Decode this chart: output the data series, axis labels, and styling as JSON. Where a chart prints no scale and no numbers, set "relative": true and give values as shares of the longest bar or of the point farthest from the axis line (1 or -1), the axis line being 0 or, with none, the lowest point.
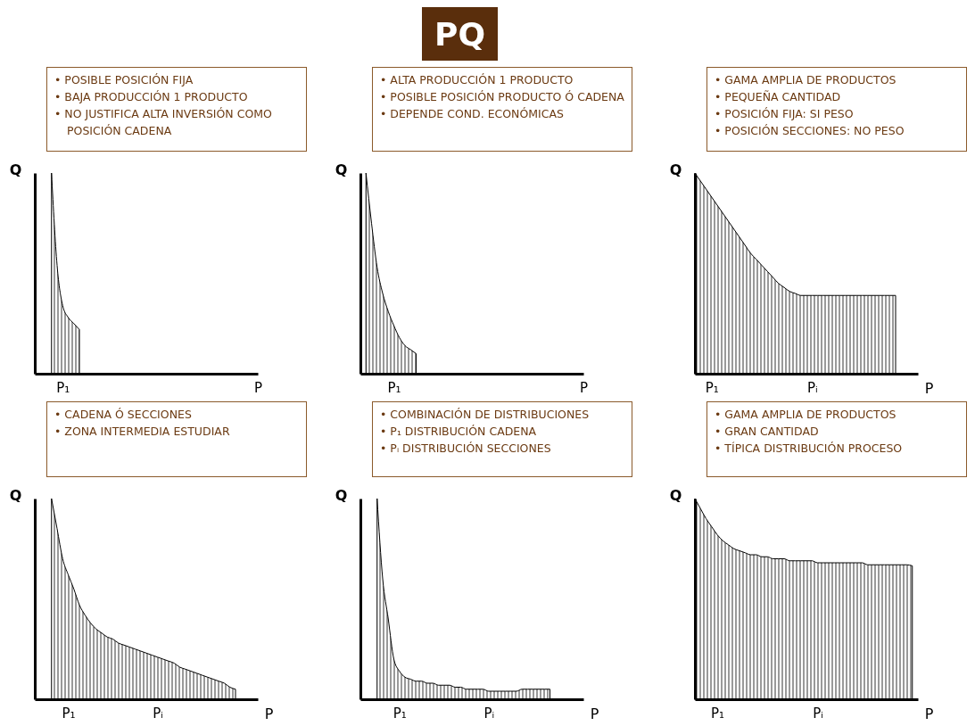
{
  "chart_data": [
    {
      "type": "other",
      "title": "PQ"
    },
    {
      "type": "area",
      "relative": true,
      "ylabel": "Q",
      "annotations": [
        "• POSIBLE POSICIÓN FIJA",
        "• BAJA PRODUCCIÓN 1 PRODUCTO",
        "• NO JUSTIFICA ALTA INVERSIÓN COMO POSICIÓN CADENA"
      ],
      "categories": [
        null,
        null,
        null,
        null,
        null,
        "P₁",
        null,
        null,
        null,
        null,
        null,
        null,
        null,
        null,
        null,
        null,
        null,
        null,
        null,
        null,
        null,
        null,
        null,
        null,
        null,
        null,
        null,
        null,
        null,
        null,
        null,
        null,
        null,
        null,
        null,
        null,
        null,
        null,
        null,
        null,
        "P"
      ],
      "series": [
        {
          "color": "#000000",
          "values": [
            null,
            null,
            null,
            1,
            0.54,
            0.34,
            0.28,
            0.25,
            0.22,
            null,
            null,
            null,
            null,
            null,
            null,
            null,
            null,
            null,
            null,
            null,
            null,
            null,
            null,
            null,
            null,
            null,
            null,
            null,
            null,
            null,
            null,
            null,
            null,
            null,
            null,
            null,
            null,
            null,
            null,
            null,
            null
          ]
        }
      ]
    },
    {
      "type": "area",
      "relative": true,
      "ylabel": "Q",
      "annotations": [
        "• ALTA PRODUCCIÓN 1 PRODUCTO",
        "• POSIBLE POSICIÓN PRODUCTO Ó CADENA",
        "• DEPENDE COND. ECONÓMICAS"
      ],
      "categories": [
        null,
        null,
        null,
        null,
        null,
        null,
        "P₁",
        null,
        null,
        null,
        null,
        null,
        null,
        null,
        null,
        null,
        null,
        null,
        null,
        null,
        null,
        null,
        null,
        null,
        null,
        null,
        null,
        null,
        null,
        null,
        null,
        null,
        null,
        null,
        null,
        null,
        null,
        null,
        null,
        null,
        "P"
      ],
      "series": [
        {
          "color": "#000000",
          "values": [
            null,
            1,
            0.75,
            0.53,
            0.4,
            0.31,
            0.24,
            0.18,
            0.14,
            0.12,
            0.1,
            null,
            null,
            null,
            null,
            null,
            null,
            null,
            null,
            null,
            null,
            null,
            null,
            null,
            null,
            null,
            null,
            null,
            null,
            null,
            null,
            null,
            null,
            null,
            null,
            null,
            null,
            null,
            null,
            null,
            null
          ]
        }
      ]
    },
    {
      "type": "area",
      "relative": true,
      "xlabel": "P",
      "ylabel": "Q",
      "annotations": [
        "• GAMA AMPLIA DE PRODUCTOS",
        "• PEQUEÑA CANTIDAD",
        "• POSICIÓN FIJA: SI PESO",
        "• POSICIÓN SECCIONES: NO PESO"
      ],
      "categories": [
        null,
        null,
        null,
        "P₁",
        null,
        null,
        null,
        null,
        null,
        null,
        null,
        null,
        null,
        null,
        null,
        null,
        null,
        null,
        null,
        null,
        null,
        "Pᵢ",
        null,
        null,
        null,
        null,
        null,
        null,
        null,
        null,
        null,
        null,
        null,
        null,
        null,
        null,
        null,
        null,
        null,
        null,
        null
      ],
      "series": [
        {
          "color": "#000000",
          "values": [
            1,
            0.96,
            0.92,
            0.88,
            0.84,
            0.8,
            0.76,
            0.72,
            0.68,
            0.64,
            0.6,
            0.57,
            0.54,
            0.51,
            0.48,
            0.45,
            0.43,
            0.41,
            0.4,
            0.39,
            0.39,
            0.39,
            0.39,
            0.39,
            0.39,
            0.39,
            0.39,
            0.39,
            0.39,
            0.39,
            0.39,
            0.39,
            0.39,
            0.39,
            0.39,
            0.39,
            0.39,
            null,
            null,
            null,
            null
          ]
        }
      ]
    },
    {
      "type": "area",
      "relative": true,
      "xlabel": "P",
      "ylabel": "Q",
      "annotations": [
        "• CADENA Ó SECCIONES",
        "• ZONA INTERMEDIA ESTUDIAR"
      ],
      "categories": [
        null,
        null,
        null,
        null,
        null,
        null,
        "P₁",
        null,
        null,
        null,
        null,
        null,
        null,
        null,
        null,
        null,
        null,
        null,
        null,
        null,
        null,
        null,
        "Pᵢ",
        null,
        null,
        null,
        null,
        null,
        null,
        null,
        null,
        null,
        null,
        null,
        null,
        null,
        null,
        null,
        null,
        null,
        null
      ],
      "series": [
        {
          "color": "#000000",
          "values": [
            null,
            null,
            null,
            1,
            0.85,
            0.7,
            0.62,
            0.55,
            0.47,
            0.42,
            0.38,
            0.35,
            0.33,
            0.31,
            0.3,
            0.28,
            0.27,
            0.26,
            0.25,
            0.24,
            0.23,
            0.22,
            0.21,
            0.2,
            0.19,
            0.18,
            0.16,
            0.15,
            0.14,
            0.13,
            0.12,
            0.11,
            0.1,
            0.09,
            0.08,
            0.06,
            0.05,
            null,
            null,
            null,
            null
          ]
        }
      ]
    },
    {
      "type": "area",
      "relative": true,
      "xlabel": "P",
      "ylabel": "Q",
      "annotations": [
        "• COMBINACIÓN DE DISTRIBUCIONES",
        "• P₁ DISTRIBUCIÓN CADENA",
        "• Pᵢ DISTRIBUCIÓN SECCIONES"
      ],
      "categories": [
        null,
        null,
        null,
        null,
        null,
        null,
        null,
        "P₁",
        null,
        null,
        null,
        null,
        null,
        null,
        null,
        null,
        null,
        null,
        null,
        null,
        null,
        null,
        null,
        "Pᵢ",
        null,
        null,
        null,
        null,
        null,
        null,
        null,
        null,
        null,
        null,
        null,
        null,
        null,
        null,
        null,
        null,
        null
      ],
      "series": [
        {
          "color": "#000000",
          "values": [
            null,
            null,
            null,
            1,
            0.6,
            0.4,
            0.2,
            0.14,
            0.11,
            0.1,
            0.09,
            0.09,
            0.08,
            0.08,
            0.07,
            0.07,
            0.07,
            0.06,
            0.06,
            0.05,
            0.05,
            0.05,
            0.05,
            0.04,
            0.04,
            0.04,
            0.04,
            0.04,
            0.04,
            0.05,
            0.05,
            0.05,
            0.05,
            0.05,
            0.05,
            null,
            null,
            null,
            null,
            null,
            null
          ]
        }
      ]
    },
    {
      "type": "area",
      "relative": true,
      "xlabel": "P",
      "ylabel": "Q",
      "annotations": [
        "• GAMA AMPLIA DE PRODUCTOS",
        "• GRAN CANTIDAD",
        "• TÍPICA DISTRIBUCIÓN PROCESO"
      ],
      "categories": [
        null,
        null,
        null,
        null,
        "P₁",
        null,
        null,
        null,
        null,
        null,
        null,
        null,
        null,
        null,
        null,
        null,
        null,
        null,
        null,
        null,
        null,
        null,
        "Pᵢ",
        null,
        null,
        null,
        null,
        null,
        null,
        null,
        null,
        null,
        null,
        null,
        null,
        null,
        null,
        null,
        null,
        null,
        null
      ],
      "series": [
        {
          "color": "#000000",
          "values": [
            1,
            0.95,
            0.9,
            0.86,
            0.82,
            0.79,
            0.77,
            0.75,
            0.74,
            0.73,
            0.72,
            0.72,
            0.71,
            0.71,
            0.7,
            0.7,
            0.7,
            0.69,
            0.69,
            0.69,
            0.69,
            0.69,
            0.68,
            0.68,
            0.68,
            0.68,
            0.68,
            0.68,
            0.68,
            0.68,
            0.68,
            0.67,
            0.67,
            0.67,
            0.67,
            0.67,
            0.67,
            0.67,
            0.67,
            0.665,
            null
          ]
        }
      ]
    }
  ]
}
